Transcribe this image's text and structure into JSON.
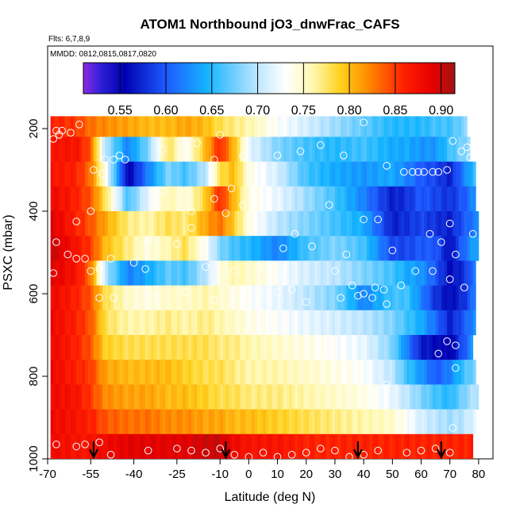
{
  "chart_data": {
    "type": "heatmap",
    "title": "ATOM1 Northbound jO3_dnwFrac_CAFS",
    "subtitle_flights": "Flts: 6,7,8,9",
    "subtitle_dates": "MMDD: 0812,0815,0817,0820",
    "xlabel": "Latitude (deg N)",
    "ylabel": "PSXC (mbar)",
    "xlim": [
      -70,
      85
    ],
    "ylim": [
      1000,
      0
    ],
    "x_ticks": [
      -70,
      -55,
      -40,
      -25,
      -10,
      0,
      10,
      20,
      30,
      40,
      50,
      60,
      70,
      80
    ],
    "y_ticks": [
      200,
      400,
      600,
      800,
      1000
    ],
    "colorbar": {
      "range": [
        0.51,
        0.915
      ],
      "ticks": [
        0.55,
        0.6,
        0.65,
        0.7,
        0.75,
        0.8,
        0.85,
        0.9
      ],
      "tick_labels": [
        "0.55",
        "0.60",
        "0.65",
        "0.70",
        "0.75",
        "0.80",
        "0.85",
        "0.90"
      ],
      "stops": [
        {
          "v": 0.51,
          "c": "#8a2be2"
        },
        {
          "v": 0.53,
          "c": "#2b1fd6"
        },
        {
          "v": 0.555,
          "c": "#0000b0"
        },
        {
          "v": 0.6,
          "c": "#1e5aff"
        },
        {
          "v": 0.645,
          "c": "#14b4ff"
        },
        {
          "v": 0.7,
          "c": "#bfe6ff"
        },
        {
          "v": 0.73,
          "c": "#ffffff"
        },
        {
          "v": 0.76,
          "c": "#fff8b0"
        },
        {
          "v": 0.79,
          "c": "#ffd21e"
        },
        {
          "v": 0.82,
          "c": "#ff8c00"
        },
        {
          "v": 0.86,
          "c": "#ff1e00"
        },
        {
          "v": 0.89,
          "c": "#e60000"
        },
        {
          "v": 0.915,
          "c": "#a01414"
        }
      ]
    },
    "field": {
      "pressure_bins": [
        {
          "top": 170,
          "bottom": 220
        },
        {
          "top": 220,
          "bottom": 280
        },
        {
          "top": 280,
          "bottom": 340
        },
        {
          "top": 340,
          "bottom": 400
        },
        {
          "top": 400,
          "bottom": 460
        },
        {
          "top": 460,
          "bottom": 520
        },
        {
          "top": 520,
          "bottom": 580
        },
        {
          "top": 580,
          "bottom": 640
        },
        {
          "top": 640,
          "bottom": 700
        },
        {
          "top": 700,
          "bottom": 760
        },
        {
          "top": 760,
          "bottom": 820
        },
        {
          "top": 820,
          "bottom": 880
        },
        {
          "top": 880,
          "bottom": 940
        },
        {
          "top": 940,
          "bottom": 1000
        }
      ],
      "lat_nodes": [
        -68,
        -60,
        -55,
        -50,
        -42,
        -35,
        -28,
        -22,
        -15,
        -10,
        -5,
        0,
        10,
        20,
        30,
        40,
        50,
        55,
        60,
        65,
        70,
        75,
        79
      ],
      "values": [
        [
          0.86,
          0.85,
          0.83,
          0.82,
          0.81,
          0.8,
          0.8,
          0.81,
          0.8,
          0.78,
          0.77,
          0.76,
          0.73,
          0.71,
          0.69,
          0.67,
          0.65,
          0.65,
          0.65,
          0.66,
          0.66,
          0.68,
          0.7
        ],
        [
          0.87,
          0.87,
          0.84,
          0.7,
          0.62,
          0.68,
          0.78,
          0.73,
          0.8,
          0.86,
          0.8,
          0.72,
          0.68,
          0.66,
          0.65,
          0.66,
          0.64,
          0.64,
          0.63,
          0.63,
          0.66,
          0.68,
          0.7
        ],
        [
          0.87,
          0.86,
          0.83,
          0.74,
          0.55,
          0.62,
          0.68,
          0.66,
          0.7,
          0.78,
          0.8,
          0.74,
          0.71,
          0.66,
          0.64,
          0.63,
          0.64,
          0.62,
          0.6,
          0.59,
          0.57,
          0.62,
          0.66
        ],
        [
          0.88,
          0.86,
          0.84,
          0.78,
          0.66,
          0.72,
          0.76,
          0.74,
          0.79,
          0.86,
          0.8,
          0.74,
          0.72,
          0.69,
          0.66,
          0.62,
          0.57,
          0.58,
          0.6,
          0.59,
          0.58,
          0.6,
          0.63
        ],
        [
          0.89,
          0.86,
          0.84,
          0.81,
          0.77,
          0.76,
          0.78,
          0.77,
          0.81,
          0.83,
          0.79,
          0.74,
          0.7,
          0.68,
          0.66,
          0.64,
          0.57,
          0.58,
          0.59,
          0.58,
          0.57,
          0.6,
          0.62
        ],
        [
          0.9,
          0.87,
          0.85,
          0.8,
          0.77,
          0.74,
          0.76,
          0.78,
          0.73,
          0.68,
          0.66,
          0.65,
          0.62,
          0.66,
          0.68,
          0.66,
          0.59,
          0.59,
          0.6,
          0.6,
          0.56,
          0.61,
          0.64
        ],
        [
          0.89,
          0.87,
          0.83,
          0.7,
          0.62,
          0.64,
          0.67,
          0.66,
          0.7,
          0.74,
          0.76,
          0.75,
          0.73,
          0.71,
          0.7,
          0.68,
          0.66,
          0.64,
          0.63,
          0.6,
          0.56,
          0.58,
          0.62
        ],
        [
          0.88,
          0.86,
          0.84,
          0.78,
          0.75,
          0.74,
          0.75,
          0.75,
          0.76,
          0.75,
          0.74,
          0.73,
          0.72,
          0.7,
          0.68,
          0.62,
          0.66,
          0.66,
          0.62,
          0.58,
          0.56,
          0.58,
          0.62
        ],
        [
          0.88,
          0.86,
          0.84,
          0.78,
          0.76,
          0.76,
          0.77,
          0.76,
          0.77,
          0.76,
          0.75,
          0.74,
          0.73,
          0.72,
          0.71,
          0.7,
          0.68,
          0.66,
          0.64,
          0.61,
          0.57,
          0.6,
          0.63
        ],
        [
          0.88,
          0.86,
          0.84,
          0.79,
          0.78,
          0.78,
          0.78,
          0.78,
          0.78,
          0.77,
          0.77,
          0.76,
          0.75,
          0.74,
          0.73,
          0.72,
          0.68,
          0.62,
          0.57,
          0.56,
          0.55,
          0.6,
          0.64
        ],
        [
          0.88,
          0.86,
          0.85,
          0.81,
          0.8,
          0.8,
          0.8,
          0.79,
          0.78,
          0.78,
          0.77,
          0.76,
          0.76,
          0.75,
          0.74,
          0.73,
          0.7,
          0.66,
          0.63,
          0.6,
          0.62,
          0.66,
          0.68
        ],
        [
          0.88,
          0.87,
          0.85,
          0.82,
          0.81,
          0.81,
          0.8,
          0.8,
          0.79,
          0.78,
          0.78,
          0.77,
          0.77,
          0.76,
          0.75,
          0.74,
          0.72,
          0.7,
          0.68,
          0.66,
          0.65,
          0.68,
          0.7
        ],
        [
          0.88,
          0.87,
          0.86,
          0.84,
          0.83,
          0.83,
          0.82,
          0.82,
          0.81,
          0.81,
          0.8,
          0.8,
          0.79,
          0.78,
          0.77,
          0.76,
          0.75,
          0.73,
          0.71,
          0.7,
          0.69,
          0.7,
          0.72
        ],
        [
          0.88,
          0.87,
          0.87,
          0.88,
          0.89,
          0.89,
          0.89,
          0.89,
          0.9,
          0.9,
          0.88,
          0.87,
          0.87,
          0.86,
          0.86,
          0.86,
          0.86,
          0.86,
          0.86,
          0.86,
          0.86,
          0.86,
          0.86
        ]
      ],
      "right_extent": [
        76,
        77,
        79,
        79,
        80,
        80,
        79,
        79,
        79,
        78,
        79,
        80,
        79,
        78
      ]
    },
    "observations": [
      [
        -67,
        205
      ],
      [
        -65,
        205
      ],
      [
        -62,
        210
      ],
      [
        -59,
        190
      ],
      [
        -66,
        215
      ],
      [
        -68,
        225
      ],
      [
        -50,
        275
      ],
      [
        -47,
        275
      ],
      [
        -45,
        265
      ],
      [
        -43,
        275
      ],
      [
        -54,
        300
      ],
      [
        -51,
        310
      ],
      [
        -30,
        250
      ],
      [
        -22,
        240
      ],
      [
        -18,
        235
      ],
      [
        -12,
        275
      ],
      [
        -10,
        215
      ],
      [
        -2,
        265
      ],
      [
        10,
        265
      ],
      [
        18,
        255
      ],
      [
        25,
        240
      ],
      [
        33,
        265
      ],
      [
        40,
        185
      ],
      [
        48,
        290
      ],
      [
        54,
        305
      ],
      [
        57,
        305
      ],
      [
        59,
        305
      ],
      [
        61,
        305
      ],
      [
        64,
        305
      ],
      [
        66,
        305
      ],
      [
        69,
        300
      ],
      [
        71,
        230
      ],
      [
        74,
        255
      ],
      [
        76,
        245
      ],
      [
        77,
        270
      ],
      [
        -55,
        400
      ],
      [
        -60,
        425
      ],
      [
        -20,
        400
      ],
      [
        -12,
        370
      ],
      [
        -8,
        405
      ],
      [
        5,
        365
      ],
      [
        28,
        385
      ],
      [
        40,
        420
      ],
      [
        45,
        420
      ],
      [
        -35,
        470
      ],
      [
        -25,
        480
      ],
      [
        -20,
        440
      ],
      [
        -30,
        350
      ],
      [
        -6,
        345
      ],
      [
        -2,
        385
      ],
      [
        12,
        490
      ],
      [
        16,
        455
      ],
      [
        22,
        485
      ],
      [
        34,
        505
      ],
      [
        50,
        495
      ],
      [
        63,
        455
      ],
      [
        67,
        475
      ],
      [
        70,
        430
      ],
      [
        72,
        505
      ],
      [
        78,
        455
      ],
      [
        -67,
        475
      ],
      [
        -68,
        550
      ],
      [
        -63,
        505
      ],
      [
        -60,
        515
      ],
      [
        -57,
        515
      ],
      [
        -55,
        545
      ],
      [
        -52,
        540
      ],
      [
        -48,
        515
      ],
      [
        -40,
        525
      ],
      [
        -36,
        540
      ],
      [
        -22,
        595
      ],
      [
        -15,
        535
      ],
      [
        -5,
        545
      ],
      [
        5,
        530
      ],
      [
        10,
        560
      ],
      [
        15,
        590
      ],
      [
        30,
        545
      ],
      [
        36,
        580
      ],
      [
        40,
        600
      ],
      [
        43,
        610
      ],
      [
        44,
        585
      ],
      [
        47,
        590
      ],
      [
        53,
        580
      ],
      [
        58,
        545
      ],
      [
        64,
        545
      ],
      [
        70,
        565
      ],
      [
        75,
        585
      ],
      [
        -52,
        610
      ],
      [
        -47,
        610
      ],
      [
        -33,
        610
      ],
      [
        -12,
        615
      ],
      [
        -5,
        610
      ],
      [
        2,
        610
      ],
      [
        5,
        600
      ],
      [
        10,
        595
      ],
      [
        20,
        620
      ],
      [
        32,
        610
      ],
      [
        38,
        605
      ],
      [
        48,
        625
      ],
      [
        69,
        715
      ],
      [
        72,
        725
      ],
      [
        66,
        745
      ],
      [
        80,
        710
      ],
      [
        72,
        780
      ],
      [
        48,
        820
      ],
      [
        71,
        925
      ],
      [
        -67,
        965
      ],
      [
        -60,
        970
      ],
      [
        -57,
        965
      ],
      [
        -52,
        960
      ],
      [
        -48,
        990
      ],
      [
        -35,
        980
      ],
      [
        -25,
        975
      ],
      [
        -20,
        980
      ],
      [
        -15,
        985
      ],
      [
        -10,
        975
      ],
      [
        -5,
        990
      ],
      [
        0,
        995
      ],
      [
        5,
        985
      ],
      [
        10,
        995
      ],
      [
        15,
        990
      ],
      [
        20,
        985
      ],
      [
        25,
        975
      ],
      [
        30,
        980
      ],
      [
        35,
        995
      ],
      [
        40,
        990
      ],
      [
        45,
        980
      ],
      [
        55,
        985
      ],
      [
        60,
        980
      ],
      [
        65,
        975
      ],
      [
        70,
        985
      ]
    ],
    "flight_arrows_lat": [
      -54,
      -8,
      38,
      67
    ]
  }
}
